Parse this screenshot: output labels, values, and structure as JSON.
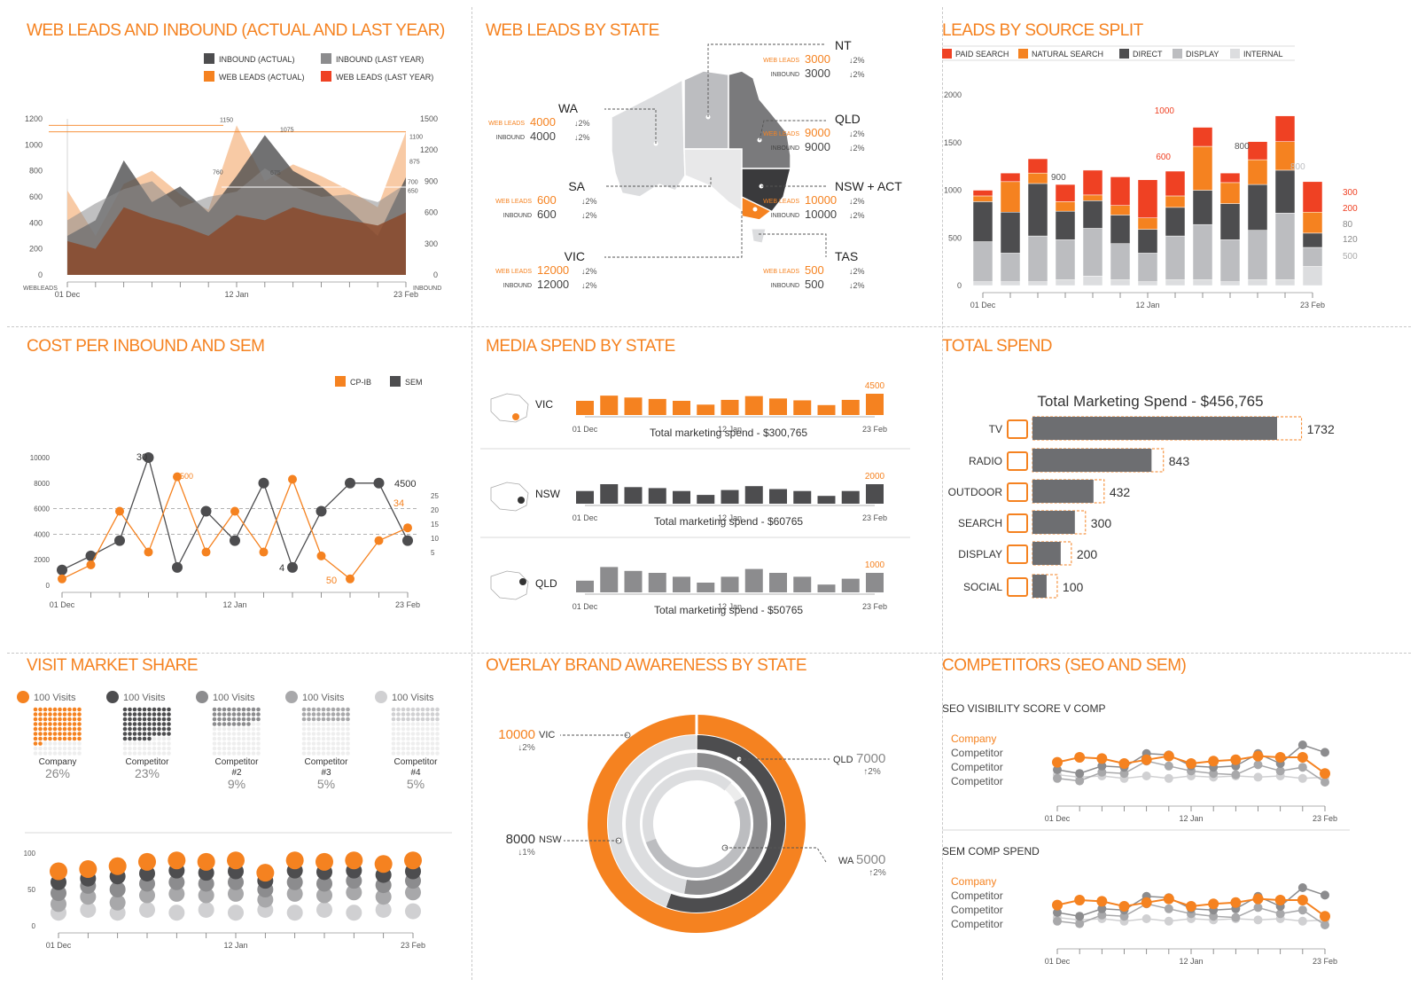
{
  "colors": {
    "orange": "#f58220",
    "red": "#ef4123",
    "dark": "#4d4d4f",
    "mid": "#8c8c8e",
    "light": "#bcbdc0",
    "lighter": "#dcdddf",
    "brown": "#8b4a2c",
    "peach": "#f7c49b"
  },
  "panel1": {
    "title": "WEB LEADS AND INBOUND (ACTUAL AND LAST YEAR)",
    "legend": [
      "INBOUND (ACTUAL)",
      "INBOUND (LAST YEAR)",
      "WEB LEADS (ACTUAL)",
      "WEB LEADS (LAST YEAR)"
    ],
    "left_axis_name": "WEBLEADS",
    "right_axis_name": "INBOUND",
    "left_ticks": [
      "0",
      "200",
      "400",
      "600",
      "800",
      "1000",
      "1200"
    ],
    "right_ticks": [
      "0",
      "300",
      "600",
      "900",
      "1200",
      "1500"
    ],
    "x_ticks": [
      "01 Dec",
      "12 Jan",
      "23 Feb"
    ],
    "annotations": [
      "1150",
      "1075",
      "1100",
      "875",
      "760",
      "700",
      "675",
      "650"
    ]
  },
  "panel2": {
    "title": "WEB LEADS BY STATE",
    "web_leads_label": "WEB LEADS",
    "inbound_label": "INBOUND",
    "states": [
      {
        "name": "NT",
        "web_leads": "3000",
        "web_change": "↓2%",
        "inbound": "3000",
        "inbound_change": "↓2%"
      },
      {
        "name": "WA",
        "web_leads": "4000",
        "web_change": "↓2%",
        "inbound": "4000",
        "inbound_change": "↓2%"
      },
      {
        "name": "QLD",
        "web_leads": "9000",
        "web_change": "↓2%",
        "inbound": "9000",
        "inbound_change": "↓2%"
      },
      {
        "name": "SA",
        "web_leads": "600",
        "web_change": "↓2%",
        "inbound": "600",
        "inbound_change": "↓2%"
      },
      {
        "name": "NSW + ACT",
        "web_leads": "10000",
        "web_change": "↓2%",
        "inbound": "10000",
        "inbound_change": "↓2%"
      },
      {
        "name": "VIC",
        "web_leads": "12000",
        "web_change": "↓2%",
        "inbound": "12000",
        "inbound_change": "↓2%"
      },
      {
        "name": "TAS",
        "web_leads": "500",
        "web_change": "↓2%",
        "inbound": "500",
        "inbound_change": "↓2%"
      }
    ]
  },
  "panel3": {
    "title": "LEADS BY SOURCE SPLIT",
    "legend": [
      "PAID SEARCH",
      "NATURAL SEARCH",
      "DIRECT",
      "DISPLAY",
      "INTERNAL"
    ],
    "y_ticks": [
      "0",
      "500",
      "1000",
      "1500",
      "2000"
    ],
    "x_ticks": [
      "01 Dec",
      "12 Jan",
      "23 Feb"
    ],
    "annotations": [
      "1000",
      "900",
      "600",
      "800",
      "800"
    ],
    "side_labels": [
      "300",
      "200",
      "80",
      "120",
      "500"
    ]
  },
  "panel4": {
    "title": "COST PER INBOUND AND SEM",
    "legend": [
      "CP-IB",
      "SEM"
    ],
    "left_ticks": [
      "0",
      "2000",
      "4000",
      "6000",
      "8000",
      "10000"
    ],
    "right_ticks": [
      "5",
      "10",
      "15",
      "20",
      "25"
    ],
    "x_ticks": [
      "01 Dec",
      "12 Jan",
      "23 Feb"
    ],
    "annotations": [
      "30",
      "8500",
      "4500",
      "34",
      "4",
      "50"
    ]
  },
  "panel5": {
    "title": "MEDIA SPEND BY STATE",
    "rows": [
      {
        "state": "VIC",
        "peak": "4500",
        "total": "Total marketing spend - $300,765"
      },
      {
        "state": "NSW",
        "peak": "2000",
        "total": "Total marketing spend - $60765"
      },
      {
        "state": "QLD",
        "peak": "1000",
        "total": "Total marketing spend - $50765"
      }
    ],
    "x_ticks": [
      "01 Dec",
      "12 Jan",
      "23 Feb"
    ]
  },
  "panel6": {
    "title": "TOTAL SPEND",
    "subtitle": "Total Marketing Spend - $456,765",
    "items": [
      {
        "label": "TV",
        "value": "1732",
        "icon": "tv-icon"
      },
      {
        "label": "RADIO",
        "value": "843",
        "icon": "radio-icon"
      },
      {
        "label": "OUTDOOR",
        "value": "432",
        "icon": "billboard-icon"
      },
      {
        "label": "SEARCH",
        "value": "300",
        "icon": "search-icon"
      },
      {
        "label": "DISPLAY",
        "value": "200",
        "icon": "monitor-icon"
      },
      {
        "label": "SOCIAL",
        "value": "100",
        "icon": "people-icon"
      }
    ]
  },
  "panel7": {
    "title": "VISIT MARKET SHARE",
    "visits_label": "100 Visits",
    "shares": [
      {
        "name": "Company",
        "pct": "26%",
        "value": 26
      },
      {
        "name": "Competitor",
        "pct": "23%",
        "value": 23
      },
      {
        "name": "Competitor #2",
        "pct": "9%",
        "value": 9
      },
      {
        "name": "Competitor #3",
        "pct": "5%",
        "value": 5
      },
      {
        "name": "Competitor #4",
        "pct": "5%",
        "value": 5
      }
    ],
    "y_ticks": [
      "0",
      "50",
      "100"
    ],
    "x_ticks": [
      "01 Dec",
      "12 Jan",
      "23 Feb"
    ]
  },
  "panel8": {
    "title": "OVERLAY BRAND AWARENESS BY STATE",
    "labels": [
      {
        "value": "10000",
        "state": "VIC",
        "change": "↓2%"
      },
      {
        "value": "7000",
        "state": "QLD",
        "change": "↑2%"
      },
      {
        "value": "8000",
        "state": "NSW",
        "change": "↓1%"
      },
      {
        "value": "5000",
        "state": "WA",
        "change": "↑2%"
      }
    ]
  },
  "panel9": {
    "title": "COMPETITORS (SEO AND SEM)",
    "sub1": "SEO VISIBILITY SCORE V COMP",
    "sub2": "SEM COMP SPEND",
    "legend": [
      "Company",
      "Competitor",
      "Competitor",
      "Competitor"
    ],
    "x_ticks": [
      "01 Dec",
      "12 Jan",
      "23 Feb"
    ]
  },
  "chart_data": [
    {
      "type": "area",
      "title": "WEB LEADS AND INBOUND (ACTUAL AND LAST YEAR)",
      "x_ticks": [
        "01 Dec",
        "12 Jan",
        "23 Feb"
      ],
      "ylim": [
        0,
        1200
      ],
      "series": [
        {
          "name": "WEB LEADS (LAST YEAR)",
          "values": [
            650,
            300,
            700,
            800,
            620,
            500,
            1150,
            720,
            850,
            760,
            650,
            520,
            1100
          ]
        },
        {
          "name": "INBOUND (ACTUAL)",
          "values": [
            300,
            420,
            880,
            560,
            680,
            480,
            760,
            1075,
            800,
            680,
            500,
            300,
            750
          ]
        },
        {
          "name": "INBOUND (LAST YEAR)",
          "values": [
            420,
            550,
            660,
            720,
            520,
            600,
            640,
            820,
            680,
            600,
            620,
            560,
            700
          ]
        },
        {
          "name": "WEB LEADS (ACTUAL)",
          "values": [
            260,
            200,
            520,
            440,
            380,
            300,
            460,
            420,
            520,
            460,
            420,
            380,
            480
          ]
        }
      ]
    },
    {
      "type": "bar",
      "title": "LEADS BY SOURCE SPLIT",
      "ylim": [
        0,
        2000
      ],
      "x_ticks": [
        "01 Dec",
        "12 Jan",
        "23 Feb"
      ],
      "series": [
        {
          "name": "INTERNAL",
          "values": [
            40,
            40,
            40,
            60,
            100,
            60,
            40,
            60,
            60,
            40,
            60,
            60,
            200
          ]
        },
        {
          "name": "DISPLAY",
          "values": [
            420,
            300,
            480,
            420,
            500,
            380,
            300,
            460,
            580,
            440,
            520,
            700,
            200
          ]
        },
        {
          "name": "DIRECT",
          "values": [
            420,
            430,
            550,
            300,
            290,
            300,
            250,
            300,
            360,
            380,
            480,
            450,
            150
          ]
        },
        {
          "name": "NATURAL SEARCH",
          "values": [
            60,
            320,
            110,
            100,
            60,
            100,
            120,
            120,
            460,
            220,
            260,
            300,
            220
          ]
        },
        {
          "name": "PAID SEARCH",
          "values": [
            60,
            90,
            150,
            180,
            260,
            300,
            400,
            260,
            200,
            100,
            190,
            270,
            320
          ]
        }
      ]
    },
    {
      "type": "line",
      "title": "COST PER INBOUND AND SEM",
      "ylim": [
        0,
        10000
      ],
      "x_ticks": [
        "01 Dec",
        "12 Jan",
        "23 Feb"
      ],
      "series": [
        {
          "name": "CP-IB",
          "values": [
            500,
            1600,
            5800,
            2600,
            8500,
            2600,
            5800,
            2600,
            8300,
            2300,
            500,
            3500,
            4500
          ]
        },
        {
          "name": "SEM",
          "values": [
            1200,
            2300,
            3500,
            10000,
            1400,
            5800,
            3500,
            8000,
            1400,
            5800,
            8000,
            8000,
            3500
          ]
        }
      ]
    },
    {
      "type": "bar",
      "title": "MEDIA SPEND BY STATE",
      "categories_ticks": [
        "01 Dec",
        "12 Jan",
        "23 Feb"
      ],
      "series": [
        {
          "name": "VIC",
          "values": [
            3000,
            4100,
            3700,
            3400,
            3000,
            2200,
            3200,
            4000,
            3500,
            3100,
            2100,
            3200,
            4500
          ]
        },
        {
          "name": "NSW",
          "values": [
            1300,
            2000,
            1700,
            1600,
            1300,
            900,
            1400,
            1800,
            1500,
            1300,
            800,
            1300,
            2000
          ]
        },
        {
          "name": "QLD",
          "values": [
            600,
            1300,
            1100,
            1000,
            800,
            500,
            800,
            1200,
            1000,
            800,
            400,
            700,
            1000
          ]
        }
      ]
    },
    {
      "type": "bar",
      "title": "TOTAL SPEND",
      "categories": [
        "TV",
        "RADIO",
        "OUTDOOR",
        "SEARCH",
        "DISPLAY",
        "SOCIAL"
      ],
      "values": [
        1732,
        843,
        432,
        300,
        200,
        100
      ]
    },
    {
      "type": "scatter",
      "title": "VISIT MARKET SHARE",
      "ylim": [
        0,
        100
      ],
      "series": [
        {
          "name": "Company",
          "values": [
            75,
            78,
            82,
            88,
            90,
            88,
            90,
            73,
            90,
            88,
            90,
            85,
            90
          ]
        },
        {
          "name": "Competitor",
          "values": [
            60,
            65,
            68,
            72,
            76,
            73,
            75,
            62,
            76,
            74,
            76,
            70,
            75
          ]
        },
        {
          "name": "Competitor #2",
          "values": [
            45,
            55,
            50,
            58,
            60,
            58,
            60,
            50,
            60,
            58,
            62,
            56,
            62
          ]
        },
        {
          "name": "Competitor #3",
          "values": [
            30,
            40,
            32,
            42,
            44,
            42,
            44,
            36,
            44,
            42,
            46,
            40,
            46
          ]
        },
        {
          "name": "Competitor #4",
          "values": [
            18,
            22,
            18,
            22,
            18,
            22,
            18,
            22,
            18,
            22,
            18,
            22,
            20
          ]
        }
      ]
    },
    {
      "type": "line",
      "title": "SEO VISIBILITY SCORE V COMP",
      "series": [
        {
          "name": "Company",
          "values": [
            62,
            70,
            68,
            60,
            66,
            72,
            60,
            64,
            66,
            72,
            70,
            70,
            44
          ]
        },
        {
          "name": "Competitor",
          "values": [
            50,
            44,
            56,
            54,
            76,
            74,
            56,
            54,
            56,
            76,
            60,
            90,
            78
          ]
        },
        {
          "name": "Competitor",
          "values": [
            36,
            32,
            46,
            44,
            64,
            56,
            48,
            44,
            42,
            58,
            48,
            54,
            30
          ]
        },
        {
          "name": "Competitor",
          "values": [
            42,
            38,
            40,
            36,
            40,
            36,
            40,
            38,
            40,
            38,
            40,
            36,
            38
          ]
        }
      ]
    },
    {
      "type": "line",
      "title": "SEM COMP SPEND",
      "series": [
        {
          "name": "Company",
          "values": [
            62,
            70,
            68,
            60,
            66,
            72,
            60,
            64,
            66,
            72,
            70,
            70,
            44
          ]
        },
        {
          "name": "Competitor",
          "values": [
            50,
            44,
            56,
            54,
            76,
            74,
            56,
            54,
            56,
            76,
            60,
            90,
            78
          ]
        },
        {
          "name": "Competitor",
          "values": [
            36,
            32,
            46,
            44,
            64,
            56,
            48,
            44,
            42,
            58,
            48,
            54,
            30
          ]
        },
        {
          "name": "Competitor",
          "values": [
            42,
            38,
            40,
            36,
            40,
            36,
            40,
            38,
            40,
            38,
            40,
            36,
            38
          ]
        }
      ]
    }
  ]
}
